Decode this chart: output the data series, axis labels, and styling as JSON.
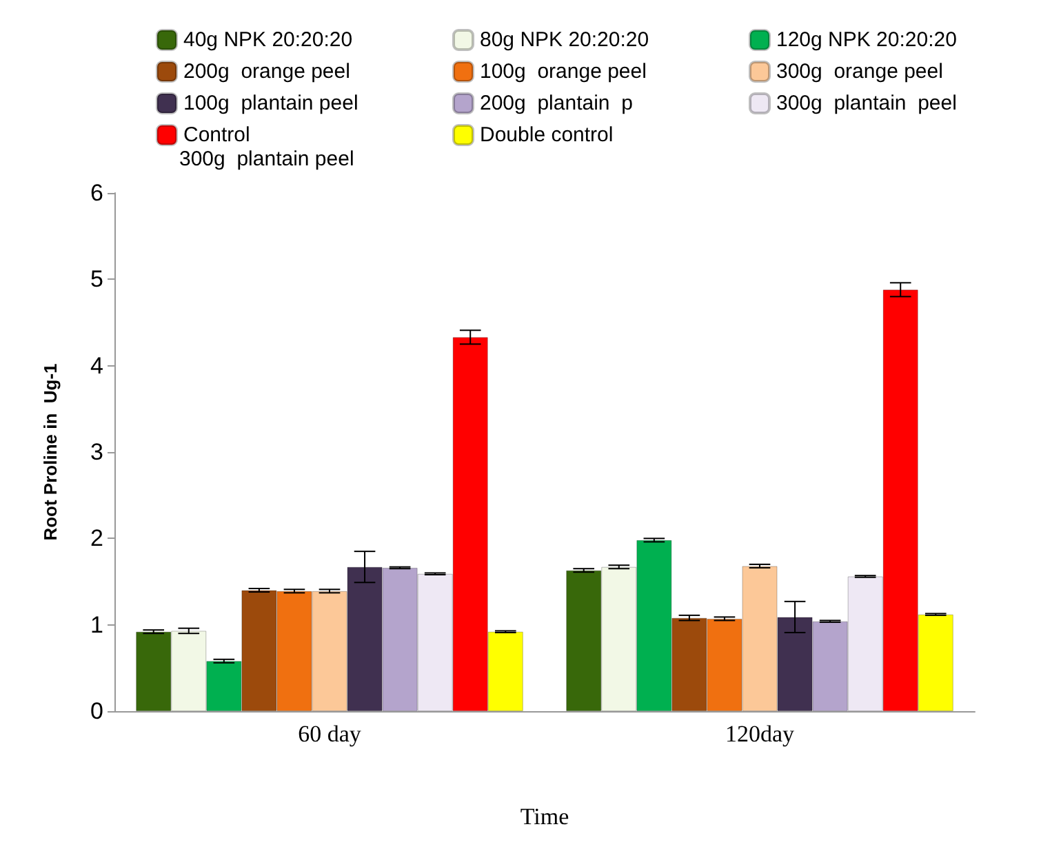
{
  "chart_data": {
    "type": "bar",
    "xlabel": "Time",
    "ylabel": "Root Proline in  Ug-1",
    "categories": [
      "60 day",
      "120day"
    ],
    "series": [
      {
        "name": "40g NPK 20:20:20",
        "color": "#38680a",
        "values": [
          0.92,
          1.63
        ],
        "errors": [
          0.02,
          0.02
        ]
      },
      {
        "name": "80g NPK 20:20:20",
        "color": "#f2f8e6",
        "values": [
          0.93,
          1.67
        ],
        "errors": [
          0.03,
          0.02
        ]
      },
      {
        "name": "120g NPK 20:20:20",
        "color": "#00b050",
        "values": [
          0.58,
          1.98
        ],
        "errors": [
          0.02,
          0.02
        ]
      },
      {
        "name": "200g  orange peel",
        "color": "#9c4a0c",
        "values": [
          1.4,
          1.08
        ],
        "errors": [
          0.02,
          0.03
        ]
      },
      {
        "name": "100g  orange peel",
        "color": "#f07010",
        "values": [
          1.39,
          1.07
        ],
        "errors": [
          0.02,
          0.02
        ]
      },
      {
        "name": "300g  orange peel",
        "color": "#fcc898",
        "values": [
          1.39,
          1.68
        ],
        "errors": [
          0.02,
          0.02
        ]
      },
      {
        "name": "100g  plantain peel",
        "color": "#403050",
        "values": [
          1.67,
          1.09
        ],
        "errors": [
          0.18,
          0.18
        ]
      },
      {
        "name": "200g  plantain  p",
        "color": "#b4a4cc",
        "values": [
          1.66,
          1.04
        ],
        "errors": [
          0.01,
          0.01
        ]
      },
      {
        "name": "300g  plantain  peel",
        "color": "#eee8f4",
        "values": [
          1.59,
          1.56
        ],
        "errors": [
          0.01,
          0.01
        ]
      },
      {
        "name": "Control",
        "color": "#ff0000",
        "values": [
          4.33,
          4.88
        ],
        "errors": [
          0.08,
          0.08
        ]
      },
      {
        "name": "Double control",
        "color": "#ffff00",
        "values": [
          0.92,
          1.12
        ],
        "errors": [
          0.01,
          0.01
        ]
      }
    ],
    "annotations": [
      "300g  plantain peel"
    ],
    "ylim": [
      0,
      6
    ],
    "yticks": [
      0,
      1,
      2,
      3,
      4,
      5,
      6
    ],
    "grid": false,
    "legend": "top"
  }
}
